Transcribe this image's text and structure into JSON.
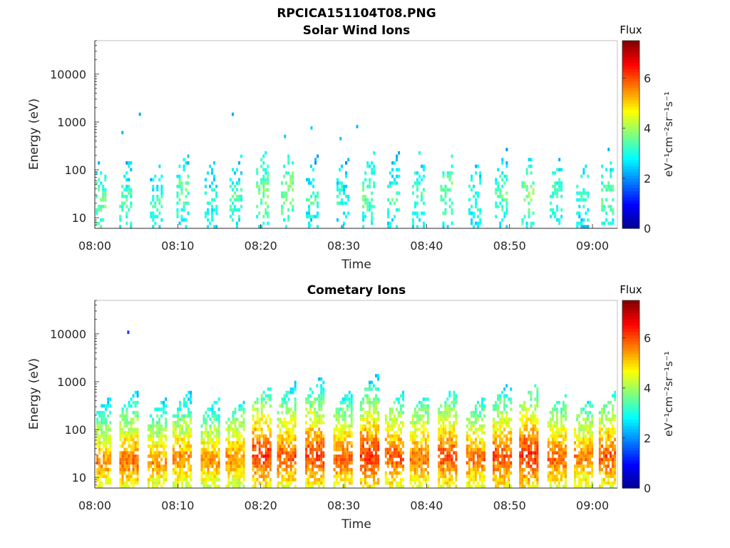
{
  "figure": {
    "title": "RPCICA151104T08.PNG"
  },
  "colors": {
    "background": "#ffffff",
    "axis": "#262626",
    "colormap": [
      "#00008f",
      "#0000ff",
      "#0080ff",
      "#00ffff",
      "#80ff80",
      "#ffff00",
      "#ff8000",
      "#ff0000",
      "#800000"
    ]
  },
  "chart_data": [
    {
      "type": "heatmap",
      "title": "Solar Wind Ions",
      "xlabel": "Time",
      "ylabel": "Energy (eV)",
      "x_ticks": [
        "08:00",
        "08:10",
        "08:20",
        "08:30",
        "08:40",
        "08:50",
        "09:00"
      ],
      "x_range_minutes": [
        0,
        63
      ],
      "y_scale": "log",
      "y_ticks": [
        10,
        100,
        1000,
        10000
      ],
      "y_tick_labels": [
        "10",
        "100",
        "1000",
        "10000"
      ],
      "y_range": [
        6,
        50000
      ],
      "colorbar": {
        "title": "Flux",
        "label": "eV⁻¹cm⁻²sr⁻¹s⁻¹",
        "ticks": [
          0,
          2,
          4,
          6
        ],
        "range": [
          0,
          7.5
        ]
      },
      "bursts": [
        {
          "t": 0.4,
          "peak_energy": 18,
          "top_energy": 300,
          "flux": 3.6
        },
        {
          "t": 3.5,
          "peak_energy": 20,
          "top_energy": 250,
          "flux": 3.4
        },
        {
          "t": 7.2,
          "peak_energy": 18,
          "top_energy": 180,
          "flux": 3.3
        },
        {
          "t": 10.4,
          "peak_energy": 30,
          "top_energy": 260,
          "flux": 3.5
        },
        {
          "t": 13.8,
          "peak_energy": 22,
          "top_energy": 200,
          "flux": 3.2
        },
        {
          "t": 16.8,
          "peak_energy": 25,
          "top_energy": 220,
          "flux": 3.4
        },
        {
          "t": 20.0,
          "peak_energy": 35,
          "top_energy": 300,
          "flux": 3.8
        },
        {
          "t": 23.0,
          "peak_energy": 40,
          "top_energy": 280,
          "flux": 3.9
        },
        {
          "t": 26.0,
          "peak_energy": 25,
          "top_energy": 200,
          "flux": 3.3
        },
        {
          "t": 29.7,
          "peak_energy": 22,
          "top_energy": 250,
          "flux": 3.2
        },
        {
          "t": 32.8,
          "peak_energy": 30,
          "top_energy": 260,
          "flux": 3.6
        },
        {
          "t": 35.8,
          "peak_energy": 25,
          "top_energy": 240,
          "flux": 3.4
        },
        {
          "t": 38.8,
          "peak_energy": 28,
          "top_energy": 320,
          "flux": 3.5
        },
        {
          "t": 42.2,
          "peak_energy": 30,
          "top_energy": 200,
          "flux": 3.7
        },
        {
          "t": 45.6,
          "peak_energy": 24,
          "top_energy": 180,
          "flux": 3.3
        },
        {
          "t": 48.8,
          "peak_energy": 28,
          "top_energy": 280,
          "flux": 3.5
        },
        {
          "t": 52.0,
          "peak_energy": 32,
          "top_energy": 260,
          "flux": 3.8
        },
        {
          "t": 55.4,
          "peak_energy": 30,
          "top_energy": 200,
          "flux": 3.4
        },
        {
          "t": 58.6,
          "peak_energy": 30,
          "top_energy": 140,
          "flux": 3.3
        },
        {
          "t": 61.6,
          "peak_energy": 26,
          "top_energy": 380,
          "flux": 3.6
        }
      ],
      "isolated_points": [
        {
          "t": 3.2,
          "energy": 600,
          "flux": 2.3
        },
        {
          "t": 5.3,
          "energy": 1450,
          "flux": 2.2
        },
        {
          "t": 16.5,
          "energy": 1450,
          "flux": 2.2
        },
        {
          "t": 22.8,
          "energy": 500,
          "flux": 2.4
        },
        {
          "t": 26.0,
          "energy": 750,
          "flux": 2.5
        },
        {
          "t": 29.5,
          "energy": 450,
          "flux": 2.4
        },
        {
          "t": 31.5,
          "energy": 800,
          "flux": 2.3
        },
        {
          "t": 25.8,
          "energy": 7,
          "flux": 3.0
        }
      ]
    },
    {
      "type": "heatmap",
      "title": "Cometary Ions",
      "xlabel": "Time",
      "ylabel": "Energy (eV)",
      "x_ticks": [
        "08:00",
        "08:10",
        "08:20",
        "08:30",
        "08:40",
        "08:50",
        "09:00"
      ],
      "x_range_minutes": [
        0,
        63
      ],
      "y_scale": "log",
      "y_ticks": [
        10,
        100,
        1000,
        10000
      ],
      "y_tick_labels": [
        "10",
        "100",
        "1000",
        "10000"
      ],
      "y_range": [
        6,
        50000
      ],
      "colorbar": {
        "title": "Flux",
        "label": "eV⁻¹cm⁻²sr⁻¹s⁻¹",
        "ticks": [
          0,
          2,
          4,
          6
        ],
        "range": [
          0,
          7.5
        ]
      },
      "bursts": [
        {
          "t": 0.5,
          "peak_energy": 20,
          "top_energy": 500,
          "flux": 5.6
        },
        {
          "t": 3.8,
          "peak_energy": 22,
          "top_energy": 700,
          "flux": 5.8
        },
        {
          "t": 7.2,
          "peak_energy": 20,
          "top_energy": 450,
          "flux": 5.5
        },
        {
          "t": 10.2,
          "peak_energy": 25,
          "top_energy": 650,
          "flux": 5.6
        },
        {
          "t": 13.6,
          "peak_energy": 22,
          "top_energy": 450,
          "flux": 5.5
        },
        {
          "t": 16.6,
          "peak_energy": 25,
          "top_energy": 400,
          "flux": 5.6
        },
        {
          "t": 19.8,
          "peak_energy": 30,
          "top_energy": 900,
          "flux": 6.3
        },
        {
          "t": 22.8,
          "peak_energy": 28,
          "top_energy": 1000,
          "flux": 6.0
        },
        {
          "t": 26.2,
          "peak_energy": 30,
          "top_energy": 1400,
          "flux": 6.2
        },
        {
          "t": 29.6,
          "peak_energy": 25,
          "top_energy": 700,
          "flux": 5.9
        },
        {
          "t": 32.8,
          "peak_energy": 28,
          "top_energy": 1500,
          "flux": 6.3
        },
        {
          "t": 35.8,
          "peak_energy": 26,
          "top_energy": 600,
          "flux": 6.0
        },
        {
          "t": 38.8,
          "peak_energy": 26,
          "top_energy": 550,
          "flux": 5.8
        },
        {
          "t": 42.2,
          "peak_energy": 28,
          "top_energy": 800,
          "flux": 6.1
        },
        {
          "t": 45.6,
          "peak_energy": 25,
          "top_energy": 500,
          "flux": 5.8
        },
        {
          "t": 48.8,
          "peak_energy": 26,
          "top_energy": 1000,
          "flux": 6.1
        },
        {
          "t": 52.0,
          "peak_energy": 30,
          "top_energy": 900,
          "flux": 6.4
        },
        {
          "t": 55.4,
          "peak_energy": 26,
          "top_energy": 550,
          "flux": 5.9
        },
        {
          "t": 58.6,
          "peak_energy": 26,
          "top_energy": 450,
          "flux": 5.7
        },
        {
          "t": 61.6,
          "peak_energy": 28,
          "top_energy": 650,
          "flux": 6.0
        }
      ],
      "isolated_points": [
        {
          "t": 3.9,
          "energy": 10800,
          "flux": 1.4
        }
      ]
    }
  ]
}
